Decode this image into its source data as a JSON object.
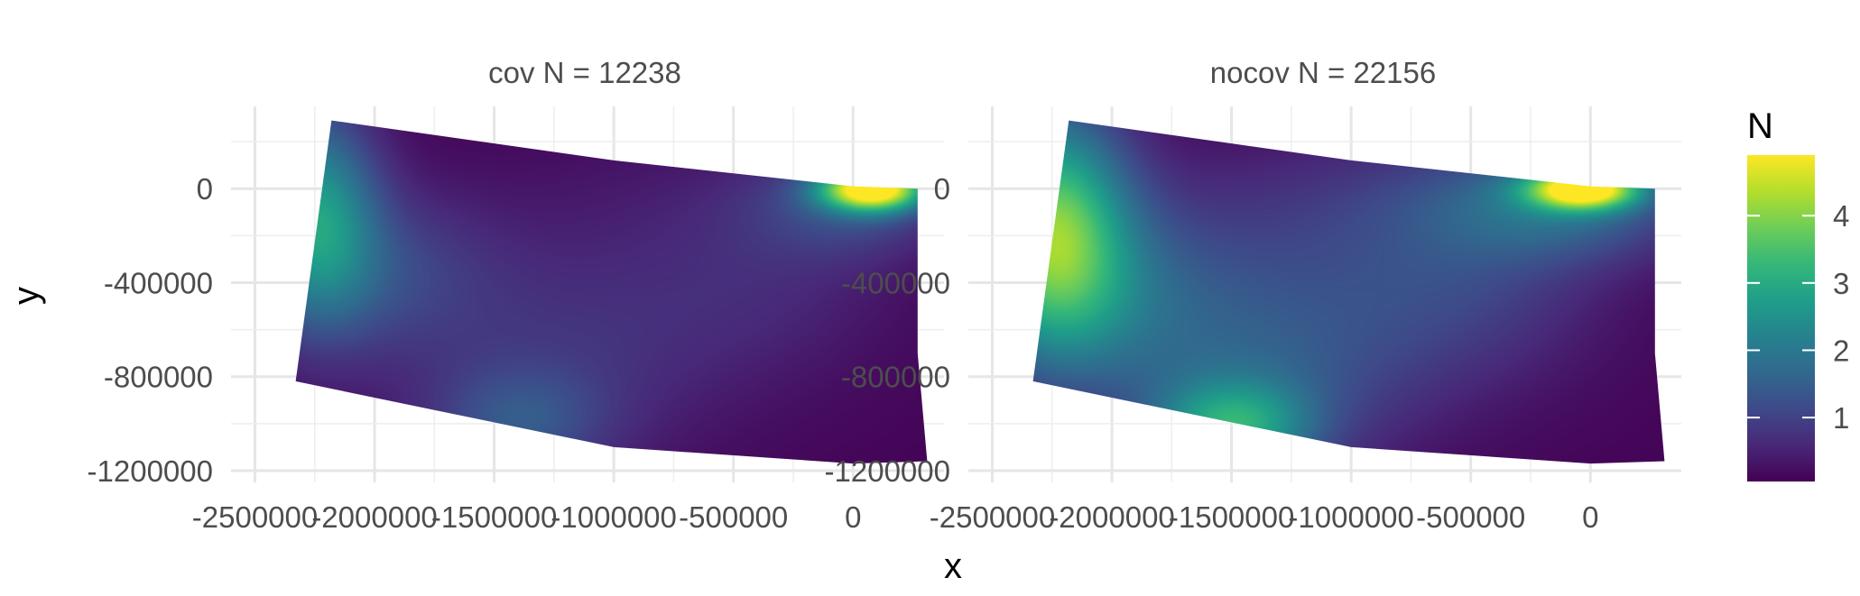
{
  "chart_data": {
    "type": "heatmap",
    "xlabel": "x",
    "ylabel": "y",
    "xlim": [
      -2600000,
      380000
    ],
    "ylim": [
      -1250000,
      350000
    ],
    "x_ticks": [
      -2500000,
      -2000000,
      -1500000,
      -1000000,
      -500000,
      0
    ],
    "x_tick_labels": [
      "-2500000",
      "-2000000",
      "-1500000",
      "-1000000",
      "-500000",
      "0"
    ],
    "y_ticks": [
      0,
      -400000,
      -800000,
      -1200000
    ],
    "y_tick_labels": [
      "0",
      "-400000",
      "-800000",
      "-1200000"
    ],
    "grid": true,
    "colormap": "viridis",
    "legend": {
      "title": "N",
      "placement": "right",
      "range": [
        0.05,
        4.9
      ],
      "ticks": [
        1,
        2,
        3,
        4
      ],
      "tick_labels": [
        "1",
        "2",
        "3",
        "4"
      ]
    },
    "region_polygon": [
      [
        -2180000,
        290000
      ],
      [
        -1000000,
        120000
      ],
      [
        0,
        10000
      ],
      [
        270000,
        0
      ],
      [
        270000,
        -700000
      ],
      [
        310000,
        -1160000
      ],
      [
        0,
        -1170000
      ],
      [
        -1000000,
        -1100000
      ],
      [
        -2330000,
        -820000
      ]
    ],
    "panels": [
      {
        "title": "cov N = 12238",
        "baseline": 0.05,
        "hotspots": [
          {
            "x": 80000,
            "y": 0,
            "value": 4.9,
            "sx": 150000,
            "sy": 65000
          },
          {
            "x": 0,
            "y": -60000,
            "value": 1.0,
            "sx": 300000,
            "sy": 160000
          },
          {
            "x": -2250000,
            "y": -100000,
            "value": 2.4,
            "sx": 180000,
            "sy": 320000
          },
          {
            "x": -2000000,
            "y": -350000,
            "value": 0.9,
            "sx": 350000,
            "sy": 250000
          },
          {
            "x": -1400000,
            "y": -1000000,
            "value": 0.9,
            "sx": 250000,
            "sy": 160000
          },
          {
            "x": -1300000,
            "y": -850000,
            "value": 0.5,
            "sx": 500000,
            "sy": 300000
          },
          {
            "x": -1100000,
            "y": -450000,
            "value": 0.3,
            "sx": 500000,
            "sy": 300000
          },
          {
            "x": -350000,
            "y": -400000,
            "value": 0.4,
            "sx": 400000,
            "sy": 300000
          },
          {
            "x": -800000,
            "y": 0,
            "value": 0.15,
            "sx": 500000,
            "sy": 200000
          }
        ]
      },
      {
        "title": "nocov N = 22156",
        "baseline": 0.05,
        "hotspots": [
          {
            "x": -30000,
            "y": 0,
            "value": 4.5,
            "sx": 160000,
            "sy": 60000
          },
          {
            "x": -100000,
            "y": -60000,
            "value": 1.5,
            "sx": 380000,
            "sy": 170000
          },
          {
            "x": -2250000,
            "y": -150000,
            "value": 3.3,
            "sx": 220000,
            "sy": 350000
          },
          {
            "x": -2100000,
            "y": -450000,
            "value": 1.2,
            "sx": 400000,
            "sy": 300000
          },
          {
            "x": -1500000,
            "y": -1020000,
            "value": 2.3,
            "sx": 230000,
            "sy": 140000
          },
          {
            "x": -1400000,
            "y": -850000,
            "value": 0.9,
            "sx": 450000,
            "sy": 280000
          },
          {
            "x": -1200000,
            "y": -400000,
            "value": 0.7,
            "sx": 600000,
            "sy": 350000
          },
          {
            "x": -500000,
            "y": -400000,
            "value": 0.6,
            "sx": 400000,
            "sy": 300000
          },
          {
            "x": -800000,
            "y": 0,
            "value": 0.3,
            "sx": 500000,
            "sy": 200000
          }
        ]
      }
    ]
  }
}
